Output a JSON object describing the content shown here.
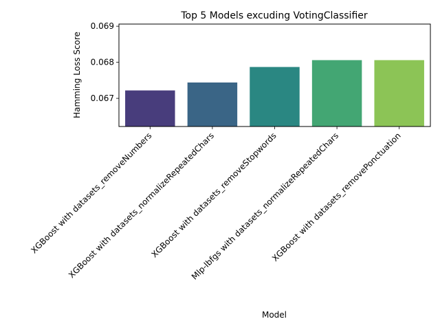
{
  "chart_data": {
    "type": "bar",
    "title": "Top 5 Models excuding VotingClassifier",
    "xlabel": "Model",
    "ylabel": "Hamming Loss Score",
    "categories": [
      "XGBoost with datasets_removeNumbers",
      "XGBoost with datasets_normalizeRepeatedChars",
      "XGBoost with datasets_removeStopwords",
      "Mlp-lbfgs with datasets_normalizeRepeatedChars",
      "XGBoost with datasets_removePonctuation"
    ],
    "values": [
      0.06722,
      0.06744,
      0.06787,
      0.06806,
      0.06806
    ],
    "colors": [
      "#483d7c",
      "#3a6586",
      "#2a8782",
      "#43a673",
      "#8cc456"
    ],
    "ylim": [
      0.06622,
      0.06906
    ],
    "yticks": [
      0.067,
      0.068,
      0.069
    ],
    "ytick_labels": [
      "0.067",
      "0.068",
      "0.069"
    ],
    "grid": false
  }
}
